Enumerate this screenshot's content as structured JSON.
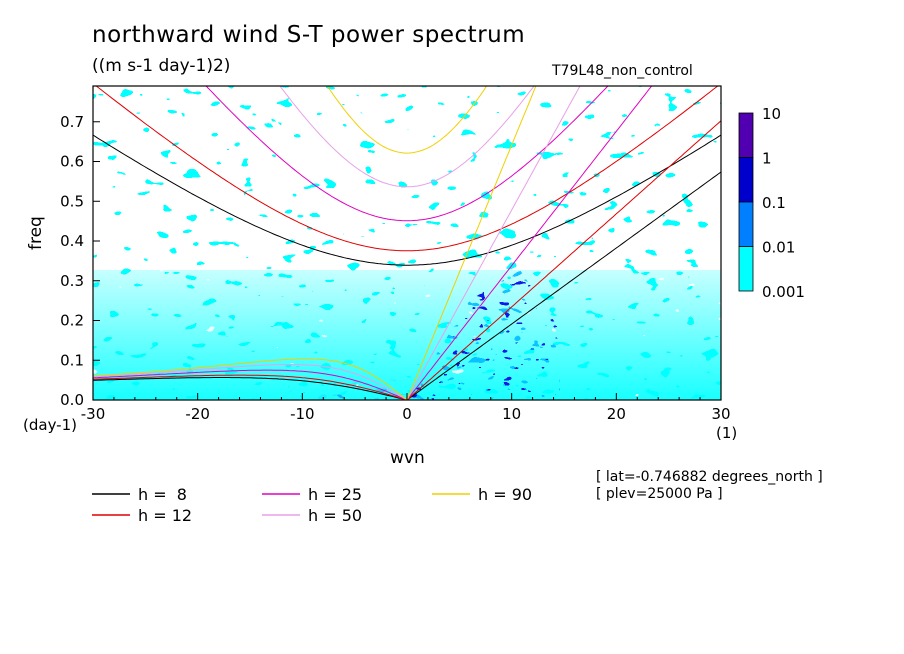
{
  "chart_data": {
    "type": "heatmap",
    "title": "northward wind S-T power spectrum",
    "subtitle": "((m s-1 day-1)2)",
    "run_name": "T79L48_non_control",
    "xlabel": "wvn",
    "ylabel": "freq",
    "x_unit": "(1)",
    "y_unit": "(day-1)",
    "xlim": [
      -30,
      30
    ],
    "ylim": [
      0,
      0.79
    ],
    "x_ticks": [
      "-30",
      "-20",
      "-10",
      "0",
      "10",
      "20",
      "30"
    ],
    "y_ticks": [
      "0.0",
      "0.1",
      "0.2",
      "0.3",
      "0.4",
      "0.5",
      "0.6",
      "0.7"
    ],
    "colorbar": {
      "levels": [
        "0.001",
        "0.01",
        "0.1",
        "1",
        "10"
      ],
      "colors": [
        "#00ffff",
        "#0080ff",
        "#0000cc",
        "#5000b0"
      ]
    },
    "info_lines": [
      "[ lat=-0.746882 degrees_north ]",
      "[ plev=25000 Pa ]"
    ],
    "dispersion_curves": [
      {
        "label": "h =  8",
        "h": 8,
        "color": "#000000"
      },
      {
        "label": "h = 12",
        "h": 12,
        "color": "#e00000"
      },
      {
        "label": "h = 25",
        "h": 25,
        "color": "#e000c0"
      },
      {
        "label": "h = 50",
        "h": 50,
        "color": "#e8a0e8"
      },
      {
        "label": "h = 90",
        "h": 90,
        "color": "#f0d000"
      }
    ]
  }
}
